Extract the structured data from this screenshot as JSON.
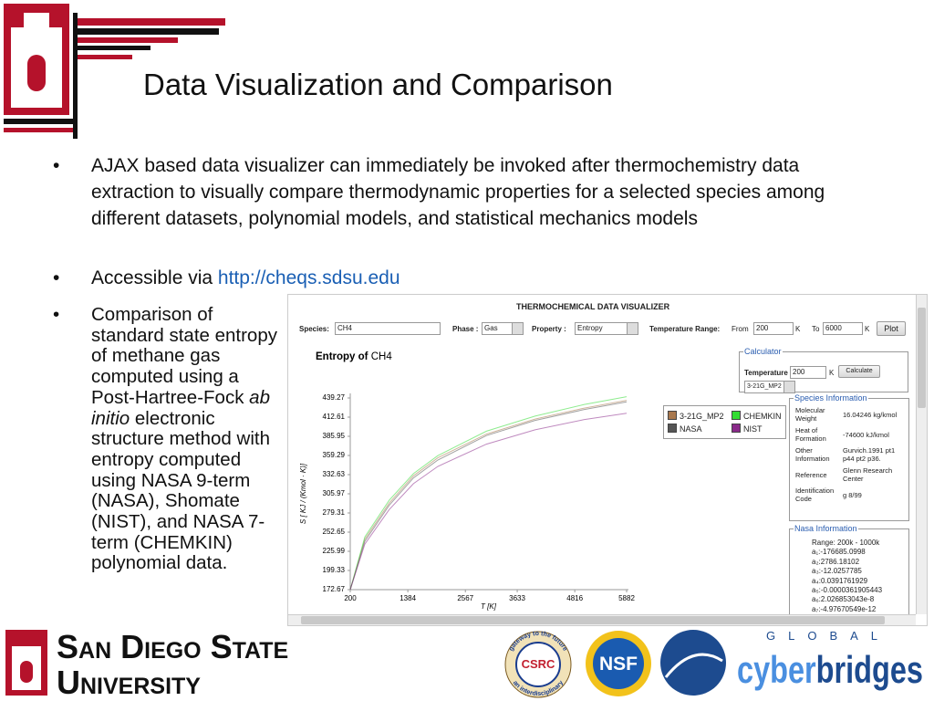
{
  "header": {
    "title": "Data Visualization and Comparison"
  },
  "bullets": [
    {
      "text": "AJAX based data visualizer can immediately be invoked after thermochemistry data extraction to visually compare thermodynamic properties for a selected species among different datasets, polynomial models, and statistical mechanics models"
    },
    {
      "text": "Accessible via",
      "link": "http://cheqs.sdsu.edu"
    },
    {
      "segments": [
        "Comparison of standard state entropy of methane gas computed using a Post-Hartree-Fock",
        "ab initio",
        "electronic structure method with entropy computed using NASA 9-term (NASA), Shomate (NIST), and NASA 7-term (CHEMKIN) polynomial data."
      ]
    }
  ],
  "app": {
    "title": "THERMOCHEMICAL DATA VISUALIZER",
    "species_label": "Species:",
    "species": "CH4",
    "phase_label": "Phase :",
    "phase": "Gas",
    "property_label": "Property :",
    "property": "Entropy",
    "range_label": "Temperature Range:",
    "from_label": "From",
    "from": "200",
    "from_unit": "K",
    "to_label": "To",
    "to": "6000",
    "to_unit": "K",
    "plot_button": "Plot",
    "calculator": {
      "legend": "Calculator",
      "temperature_label": "Temperature",
      "temperature": "200",
      "unit": "K",
      "button": "Calculate",
      "model": "3-21G_MP2"
    },
    "species_info": {
      "legend": "Species Information",
      "rows": [
        [
          "Molecular Weight",
          "16.04246 kg/kmol"
        ],
        [
          "Heat of Formation",
          "-74600 kJ/kmol"
        ],
        [
          "Other Information",
          "Gurvich.1991 pt1 p44 pt2 p36."
        ],
        [
          "Reference",
          "Glenn Research Center"
        ],
        [
          "Identification Code",
          "g 8/99"
        ]
      ]
    },
    "nasa_info": {
      "legend": "Nasa Information",
      "range": "Range: 200k - 1000k",
      "coefficients": [
        "a₁:-176685.0998",
        "a₂:2786.18102",
        "a₃:-12.0257785",
        "a₄:0.0391761929",
        "a₅:-0.0000361905443",
        "a₆:2.026853043e-8",
        "a₇:-4.97670549e-12"
      ]
    }
  },
  "chart_data": {
    "type": "line",
    "title": "Entropy of",
    "subtitle": "CH4",
    "x_label": "T [K]",
    "y_label": "S [ KJ / (Kmol · K)]",
    "x": [
      200,
      500,
      1000,
      1500,
      2000,
      3000,
      4000,
      5000,
      5882
    ],
    "xlim": [
      200,
      5882
    ],
    "xticks": [
      200,
      1384,
      2567,
      3633,
      4816,
      5882
    ],
    "ylim": [
      172.67,
      439.27
    ],
    "yticks": [
      172.67,
      199.33,
      225.99,
      252.65,
      279.31,
      305.97,
      332.63,
      359.29,
      385.95,
      412.61,
      439.27
    ],
    "series": [
      {
        "name": "3-21G_MP2",
        "color": "#a8784e",
        "values": [
          172.67,
          243,
          293,
          331,
          356,
          389,
          410,
          425,
          436
        ]
      },
      {
        "name": "CHEMKIN",
        "color": "#33dd33",
        "values": [
          172.67,
          246,
          297,
          334,
          359,
          393,
          414,
          430,
          441
        ]
      },
      {
        "name": "NASA",
        "color": "#555555",
        "values": [
          172.67,
          240,
          290,
          328,
          353,
          387,
          408,
          423,
          434
        ]
      },
      {
        "name": "NIST",
        "color": "#8a2a8a",
        "values": [
          172.67,
          236,
          284,
          320,
          344,
          375,
          395,
          409,
          418
        ]
      }
    ]
  },
  "logos": {
    "sdsu": [
      "San Diego State",
      "University"
    ],
    "csrc": "CSRC",
    "csrc_ring_top": "gateway to the future",
    "csrc_ring_bottom": "an interdisciplinary",
    "nsf": "NSF",
    "cyberbridges_top": "GLOBAL",
    "cyber": "cyber",
    "bridges": "bridges"
  }
}
